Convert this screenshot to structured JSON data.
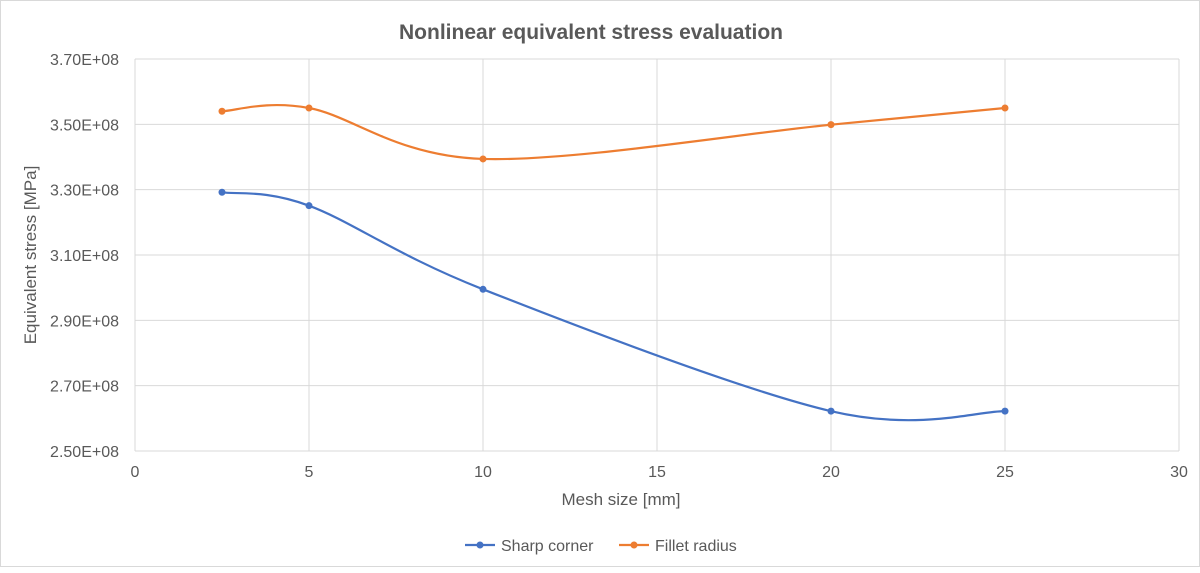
{
  "chart_data": {
    "type": "line",
    "title": "Nonlinear equivalent stress evaluation",
    "xlabel": "Mesh size [mm]",
    "ylabel": "Equivalent stress [MPa]",
    "xlim": [
      0,
      30
    ],
    "ylim": [
      250000000,
      370000000
    ],
    "x_ticks": [
      0,
      5,
      10,
      15,
      20,
      25,
      30
    ],
    "x_tick_labels": [
      "0",
      "5",
      "10",
      "15",
      "20",
      "25",
      "30"
    ],
    "y_ticks": [
      250000000,
      270000000,
      290000000,
      310000000,
      330000000,
      350000000,
      370000000
    ],
    "y_tick_labels": [
      "2.50E+08",
      "2.70E+08",
      "2.90E+08",
      "3.10E+08",
      "3.30E+08",
      "3.50E+08",
      "3.70E+08"
    ],
    "grid": true,
    "smoothed": true,
    "legend_position": "bottom",
    "series": [
      {
        "name": "Sharp corner",
        "color": "#4472c4",
        "x": [
          2.5,
          5,
          10,
          20,
          25
        ],
        "y": [
          329200000,
          325100000,
          299500000,
          262200000,
          262200000
        ]
      },
      {
        "name": "Fillet radius",
        "color": "#ed7d31",
        "x": [
          2.5,
          5,
          10,
          20,
          25
        ],
        "y": [
          354000000,
          355000000,
          339400000,
          349900000,
          355000000
        ]
      }
    ]
  }
}
